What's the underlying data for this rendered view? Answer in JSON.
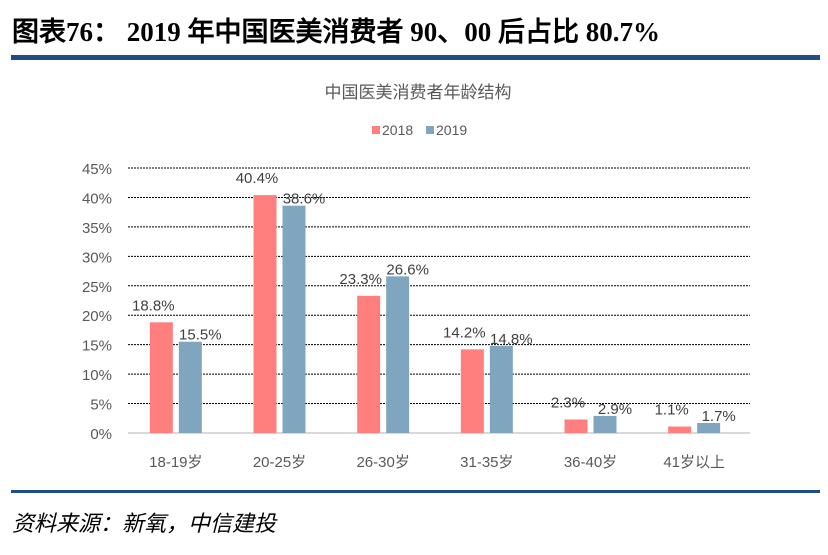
{
  "figure_title": "图表76：  2019 年中国医美消费者 90、00 后占比 80.7%",
  "source": "资料来源：新氧，中信建投",
  "colors": {
    "rule": "#1f4e86",
    "s2018": "#ff7f7f",
    "s2019": "#7fa5bf"
  },
  "chart_data": {
    "type": "bar",
    "title": "中国医美消费者年龄结构",
    "categories": [
      "18-19岁",
      "20-25岁",
      "26-30岁",
      "31-35岁",
      "36-40岁",
      "41岁以上"
    ],
    "series": [
      {
        "name": "2018",
        "values": [
          18.8,
          40.4,
          23.3,
          14.2,
          2.3,
          1.1
        ],
        "labels": [
          "18.8%",
          "40.4%",
          "23.3%",
          "14.2%",
          "2.3%",
          "1.1%"
        ],
        "color": "#ff7f7f"
      },
      {
        "name": "2019",
        "values": [
          15.5,
          38.6,
          26.6,
          14.8,
          2.9,
          1.7
        ],
        "labels": [
          "15.5%",
          "38.6%",
          "26.6%",
          "14.8%",
          "2.9%",
          "1.7%"
        ],
        "color": "#7fa5bf"
      }
    ],
    "yticks": [
      "0%",
      "5%",
      "10%",
      "15%",
      "20%",
      "25%",
      "30%",
      "35%",
      "40%",
      "45%"
    ],
    "ylim": [
      0,
      45
    ],
    "grid": true,
    "legend": "top"
  }
}
